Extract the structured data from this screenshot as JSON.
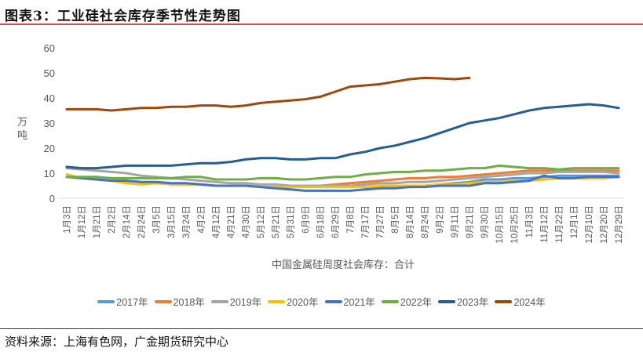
{
  "header": {
    "title": "图表3：工业硅社会库存季节性走势图"
  },
  "footer": {
    "source": "资料来源：上海有色网，广金期货研究中心"
  },
  "chart_data": {
    "type": "line",
    "title": "图表3：工业硅社会库存季节性走势图",
    "xlabel": "中国金属硅周度社会库存：合计",
    "ylabel": "万吨",
    "ylim": [
      0,
      60
    ],
    "yticks": [
      0,
      10,
      20,
      30,
      40,
      50,
      60
    ],
    "grid": false,
    "legend_position": "bottom",
    "categories": [
      "1月3日",
      "1月12日",
      "1月21日",
      "2月2日",
      "2月14日",
      "2月24日",
      "3月5日",
      "3月15日",
      "3月24日",
      "4月2日",
      "4月12日",
      "4月21日",
      "4月30日",
      "5月12日",
      "5月21日",
      "5月31日",
      "6月9日",
      "6月18日",
      "6月29日",
      "7月8日",
      "7月17日",
      "7月27日",
      "8月5日",
      "8月14日",
      "8月24日",
      "9月2日",
      "9月11日",
      "9月21日",
      "9月30日",
      "10月15日",
      "10月25日",
      "11月3日",
      "11月12日",
      "11月22日",
      "12月1日",
      "12月10日",
      "12月20日",
      "12月29日"
    ],
    "series": [
      {
        "name": "2017年",
        "color": "#5b9bd5",
        "values": [
          null,
          null,
          null,
          null,
          null,
          null,
          null,
          null,
          null,
          null,
          null,
          null,
          null,
          null,
          null,
          null,
          null,
          null,
          null,
          null,
          3.5,
          4,
          4.5,
          4.5,
          5,
          5.5,
          6,
          6.5,
          7.5,
          7.5,
          8,
          8,
          8.5,
          9,
          9,
          9,
          9,
          9
        ]
      },
      {
        "name": "2018年",
        "color": "#ed7d31",
        "values": [
          null,
          null,
          null,
          null,
          null,
          null,
          null,
          null,
          null,
          null,
          null,
          null,
          null,
          null,
          null,
          null,
          null,
          5,
          5.5,
          6,
          6.5,
          7,
          7.5,
          8,
          8,
          8.5,
          8.5,
          9,
          9.5,
          10,
          10.5,
          11,
          11,
          11,
          11,
          11,
          11,
          11
        ]
      },
      {
        "name": "2019年",
        "color": "#a5a5a5",
        "values": [
          12,
          11.5,
          11,
          10.5,
          10,
          9,
          8.5,
          8,
          7.5,
          7,
          6.5,
          6,
          6,
          5.5,
          5.5,
          5,
          5,
          5,
          5,
          5,
          5.5,
          6,
          6,
          6.5,
          6.5,
          7,
          7.5,
          8,
          8.5,
          9,
          9.5,
          10,
          10,
          10.5,
          10.5,
          10.5,
          10.5,
          10
        ]
      },
      {
        "name": "2020年",
        "color": "#ffc000",
        "values": [
          9.5,
          8,
          7.5,
          7,
          6,
          5.5,
          6,
          5.5,
          5.5,
          5.5,
          5,
          5,
          5,
          4.5,
          4.5,
          4.5,
          4.5,
          4.5,
          4.5,
          4.5,
          4.5,
          5,
          5,
          5,
          5,
          5.5,
          5.5,
          6,
          6.5,
          6.5,
          7,
          7,
          7.5,
          8,
          8,
          8,
          8,
          8.5
        ]
      },
      {
        "name": "2021年",
        "color": "#4472c4",
        "values": [
          8.5,
          8,
          7.5,
          7,
          7,
          6.5,
          6.5,
          6,
          6,
          5.5,
          5,
          5,
          5,
          4.5,
          4,
          3.5,
          3,
          3,
          3,
          3,
          3.5,
          4,
          4,
          4.5,
          4.5,
          5,
          5,
          5,
          6,
          6,
          6.5,
          7,
          9,
          8,
          8,
          8.5,
          8.5,
          8.5
        ]
      },
      {
        "name": "2022年",
        "color": "#70ad47",
        "values": [
          8.5,
          8.5,
          8.5,
          8,
          8,
          8,
          8,
          8,
          8.5,
          8.5,
          7.5,
          7.5,
          7.5,
          8,
          8,
          7.5,
          7.5,
          8,
          8.5,
          8.5,
          9.5,
          10,
          10.5,
          10.5,
          11,
          11,
          11.5,
          12,
          12,
          13,
          12.5,
          12,
          12,
          11.5,
          12,
          12,
          12,
          12
        ]
      },
      {
        "name": "2023年",
        "color": "#255e91",
        "values": [
          12.5,
          12,
          12,
          12.5,
          13,
          13,
          13,
          13,
          13.5,
          14,
          14,
          14.5,
          15.5,
          16,
          16,
          15.5,
          15.5,
          16,
          16,
          17.5,
          18.5,
          20,
          21,
          22.5,
          24,
          26,
          28,
          30,
          31,
          32,
          33.5,
          35,
          36,
          36.5,
          37,
          37.5,
          37,
          36
        ]
      },
      {
        "name": "2024年",
        "color": "#9e480e",
        "values": [
          35.5,
          35.5,
          35.5,
          35,
          35.5,
          36,
          36,
          36.5,
          36.5,
          37,
          37,
          36.5,
          37,
          38,
          38.5,
          39,
          39.5,
          40.5,
          42.5,
          44.5,
          45,
          45.5,
          46.5,
          47.5,
          48,
          47.8,
          47.5,
          48,
          null,
          null,
          null,
          null,
          null,
          null,
          null,
          null,
          null,
          null
        ]
      }
    ]
  }
}
